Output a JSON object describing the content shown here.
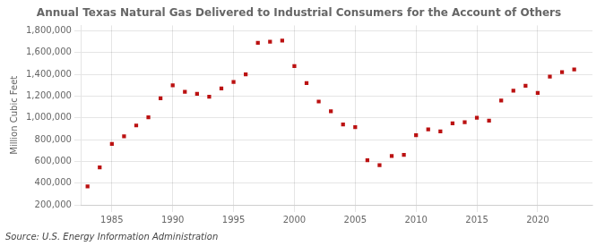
{
  "chart_data": {
    "type": "scatter",
    "title": "Annual Texas Natural Gas Delivered to Industrial Consumers for the Account of Others",
    "ylabel": "Million Cubic Feet",
    "annotations": [
      "Source: U.S. Energy Information Administration"
    ],
    "x": [
      1983,
      1984,
      1985,
      1986,
      1987,
      1988,
      1989,
      1990,
      1991,
      1992,
      1993,
      1994,
      1995,
      1996,
      1997,
      1998,
      1999,
      2000,
      2001,
      2002,
      2003,
      2004,
      2005,
      2006,
      2007,
      2008,
      2009,
      2010,
      2011,
      2012,
      2013,
      2014,
      2015,
      2016,
      2017,
      2018,
      2019,
      2020,
      2021,
      2022,
      2023
    ],
    "values": [
      370000,
      545000,
      760000,
      830000,
      930000,
      1005000,
      1180000,
      1300000,
      1240000,
      1220000,
      1195000,
      1270000,
      1330000,
      1400000,
      1690000,
      1700000,
      1710000,
      1475000,
      1320000,
      1150000,
      1060000,
      940000,
      915000,
      610000,
      565000,
      650000,
      660000,
      840000,
      895000,
      875000,
      950000,
      960000,
      1000000,
      975000,
      1160000,
      1250000,
      1295000,
      1230000,
      1380000,
      1420000,
      1445000
    ],
    "color": "#bb1111",
    "marker": "square",
    "xlim": [
      1982.5,
      2024.5
    ],
    "ylim": [
      200000,
      1850000
    ],
    "xticks": [
      1985,
      1990,
      1995,
      2000,
      2005,
      2010,
      2015,
      2020
    ],
    "yticks": [
      {
        "value": 200000,
        "label": "200,000"
      },
      {
        "value": 400000,
        "label": "400,000"
      },
      {
        "value": 600000,
        "label": "600,000"
      },
      {
        "value": 800000,
        "label": "800,000"
      },
      {
        "value": 1000000,
        "label": "1,000,000"
      },
      {
        "value": 1200000,
        "label": "1,200,000"
      },
      {
        "value": 1400000,
        "label": "1,400,000"
      },
      {
        "value": 1600000,
        "label": "1,600,000"
      },
      {
        "value": 1800000,
        "label": "1,800,000"
      }
    ],
    "grid": true
  }
}
